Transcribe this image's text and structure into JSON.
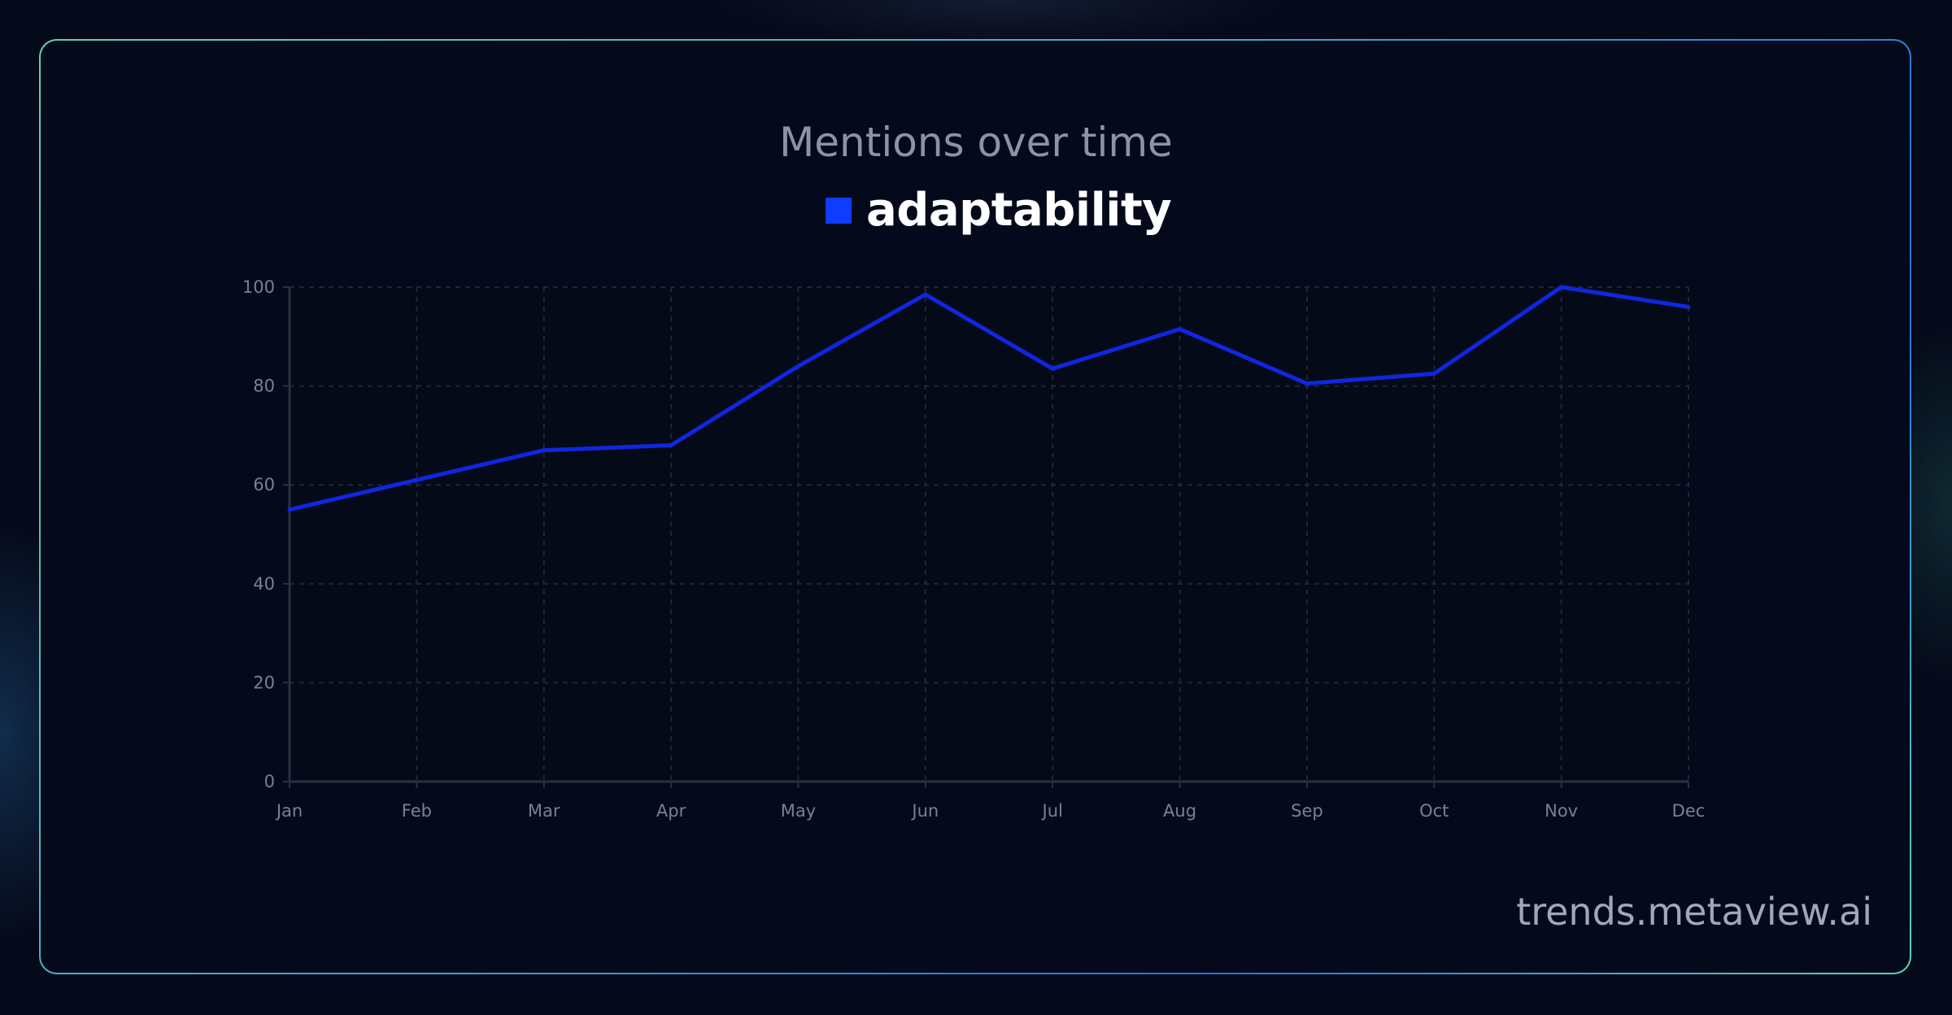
{
  "chart_data": {
    "type": "line",
    "title": "Mentions over time",
    "categories": [
      "Jan",
      "Feb",
      "Mar",
      "Apr",
      "May",
      "Jun",
      "Jul",
      "Aug",
      "Sep",
      "Oct",
      "Nov",
      "Dec"
    ],
    "series": [
      {
        "name": "adaptability",
        "color": "#0f27e0",
        "values": [
          55,
          61,
          67,
          68,
          84,
          98.5,
          83.5,
          91.5,
          80.5,
          82.5,
          100,
          96
        ]
      }
    ],
    "yticks": [
      0,
      20,
      40,
      60,
      80,
      100
    ],
    "ylim": [
      0,
      100
    ],
    "xlabel": "",
    "ylabel": "",
    "grid": true,
    "legend": "top-center"
  },
  "legend": {
    "swatch_color": "#0f3cff",
    "label": "adaptability"
  },
  "footer": {
    "watermark": "trends.metaview.ai"
  }
}
